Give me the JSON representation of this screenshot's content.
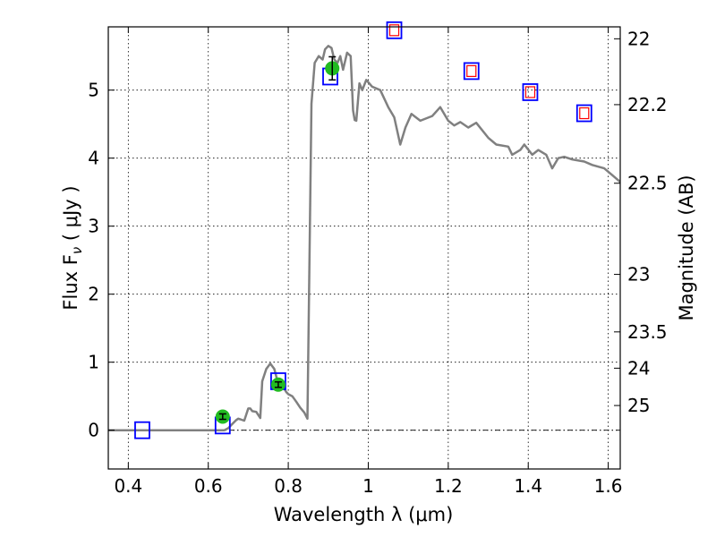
{
  "chart_data": {
    "type": "scatter",
    "xlabel": "Wavelength  λ (μm)",
    "ylabel": "Flux  F",
    "ylabel_sub": "ν",
    "ylabel_unit": "  ( μJy )",
    "ylabel_right": "Magnitude (AB)",
    "xlim": [
      0.35,
      1.63
    ],
    "ylim": [
      -0.57,
      5.93
    ],
    "x_ticks": [
      0.4,
      0.6,
      0.8,
      1.0,
      1.2,
      1.4,
      1.6
    ],
    "x_tick_labels": [
      "0.4",
      "0.6",
      "0.8",
      "1",
      "1.2",
      "1.4",
      "1.6"
    ],
    "y_ticks": [
      0,
      1,
      2,
      3,
      4,
      5
    ],
    "y_tick_labels": [
      "0",
      "1",
      "2",
      "3",
      "4",
      "5"
    ],
    "right_ticks": [
      {
        "mag": 22,
        "label": "22"
      },
      {
        "mag": 22.2,
        "label": "22.2"
      },
      {
        "mag": 22.5,
        "label": "22.5"
      },
      {
        "mag": 23,
        "label": "23"
      },
      {
        "mag": 23.5,
        "label": "23.5"
      },
      {
        "mag": 24,
        "label": "24"
      },
      {
        "mag": 25,
        "label": "25"
      }
    ],
    "grid": true,
    "zero_line": true,
    "colors": {
      "model": "#808080",
      "observed": "#22bb22",
      "model_phot": "#0000ff",
      "predicted": "#ff0000",
      "errorbar": "#000000"
    },
    "series": [
      {
        "kind": "line",
        "points": [
          [
            0.35,
            0.0
          ],
          [
            0.45,
            0.0
          ],
          [
            0.55,
            0.0
          ],
          [
            0.62,
            0.0
          ],
          [
            0.64,
            0.0
          ],
          [
            0.65,
            0.03
          ],
          [
            0.66,
            0.09
          ],
          [
            0.67,
            0.15
          ],
          [
            0.675,
            0.17
          ],
          [
            0.68,
            0.16
          ],
          [
            0.69,
            0.14
          ],
          [
            0.7,
            0.32
          ],
          [
            0.705,
            0.32
          ],
          [
            0.71,
            0.28
          ],
          [
            0.72,
            0.27
          ],
          [
            0.73,
            0.18
          ],
          [
            0.735,
            0.72
          ],
          [
            0.745,
            0.9
          ],
          [
            0.755,
            0.98
          ],
          [
            0.765,
            0.9
          ],
          [
            0.775,
            0.68
          ],
          [
            0.785,
            0.66
          ],
          [
            0.795,
            0.56
          ],
          [
            0.8,
            0.53
          ],
          [
            0.81,
            0.5
          ],
          [
            0.82,
            0.42
          ],
          [
            0.83,
            0.33
          ],
          [
            0.84,
            0.26
          ],
          [
            0.848,
            0.17
          ],
          [
            0.852,
            2.0
          ],
          [
            0.858,
            4.8
          ],
          [
            0.866,
            5.4
          ],
          [
            0.876,
            5.5
          ],
          [
            0.886,
            5.45
          ],
          [
            0.892,
            5.6
          ],
          [
            0.9,
            5.65
          ],
          [
            0.908,
            5.62
          ],
          [
            0.915,
            5.45
          ],
          [
            0.923,
            5.4
          ],
          [
            0.93,
            5.5
          ],
          [
            0.937,
            5.3
          ],
          [
            0.947,
            5.55
          ],
          [
            0.956,
            5.5
          ],
          [
            0.962,
            4.7
          ],
          [
            0.966,
            4.56
          ],
          [
            0.97,
            4.55
          ],
          [
            0.978,
            5.1
          ],
          [
            0.985,
            5.0
          ],
          [
            0.995,
            5.15
          ],
          [
            1.01,
            5.05
          ],
          [
            1.03,
            5.0
          ],
          [
            1.05,
            4.75
          ],
          [
            1.065,
            4.6
          ],
          [
            1.08,
            4.2
          ],
          [
            1.093,
            4.45
          ],
          [
            1.108,
            4.65
          ],
          [
            1.13,
            4.55
          ],
          [
            1.16,
            4.62
          ],
          [
            1.18,
            4.75
          ],
          [
            1.2,
            4.55
          ],
          [
            1.215,
            4.48
          ],
          [
            1.23,
            4.53
          ],
          [
            1.25,
            4.45
          ],
          [
            1.27,
            4.52
          ],
          [
            1.3,
            4.3
          ],
          [
            1.32,
            4.2
          ],
          [
            1.35,
            4.17
          ],
          [
            1.36,
            4.05
          ],
          [
            1.38,
            4.12
          ],
          [
            1.39,
            4.2
          ],
          [
            1.41,
            4.05
          ],
          [
            1.425,
            4.12
          ],
          [
            1.445,
            4.05
          ],
          [
            1.46,
            3.85
          ],
          [
            1.475,
            4.0
          ],
          [
            1.49,
            4.02
          ],
          [
            1.51,
            3.98
          ],
          [
            1.54,
            3.95
          ],
          [
            1.56,
            3.9
          ],
          [
            1.59,
            3.85
          ],
          [
            1.61,
            3.75
          ],
          [
            1.63,
            3.65
          ]
        ]
      },
      {
        "kind": "model-photometry",
        "points": [
          [
            0.435,
            0.0
          ],
          [
            0.636,
            0.07
          ],
          [
            0.775,
            0.72
          ],
          [
            0.905,
            5.2
          ],
          [
            1.065,
            5.88
          ],
          [
            1.258,
            5.28
          ],
          [
            1.405,
            4.97
          ],
          [
            1.54,
            4.66
          ]
        ]
      },
      {
        "kind": "predicted",
        "points": [
          [
            1.065,
            5.88
          ],
          [
            1.258,
            5.28
          ],
          [
            1.405,
            4.97
          ],
          [
            1.54,
            4.66
          ]
        ]
      },
      {
        "kind": "observed",
        "points": [
          {
            "x": 0.636,
            "y": 0.2,
            "err": 0.04
          },
          {
            "x": 0.775,
            "y": 0.67,
            "err": 0.04
          },
          {
            "x": 0.91,
            "y": 5.32,
            "err": 0.17
          }
        ]
      }
    ]
  }
}
